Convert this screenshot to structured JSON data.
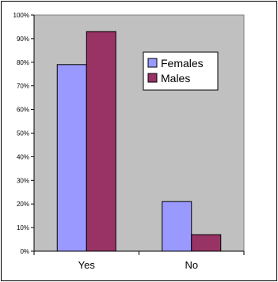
{
  "chart_data": {
    "type": "bar",
    "categories": [
      "Yes",
      "No"
    ],
    "series": [
      {
        "name": "Females",
        "values": [
          79,
          21
        ],
        "color": "#9999ff"
      },
      {
        "name": "Males",
        "values": [
          93,
          7
        ],
        "color": "#993366"
      }
    ],
    "ylim": [
      0,
      100
    ],
    "yticks": [
      "0%",
      "10%",
      "20%",
      "30%",
      "40%",
      "50%",
      "60%",
      "70%",
      "80%",
      "90%",
      "100%"
    ],
    "plot_background": "#c0c0c0",
    "gridlines": false,
    "legend_position": "top-right-inside"
  }
}
